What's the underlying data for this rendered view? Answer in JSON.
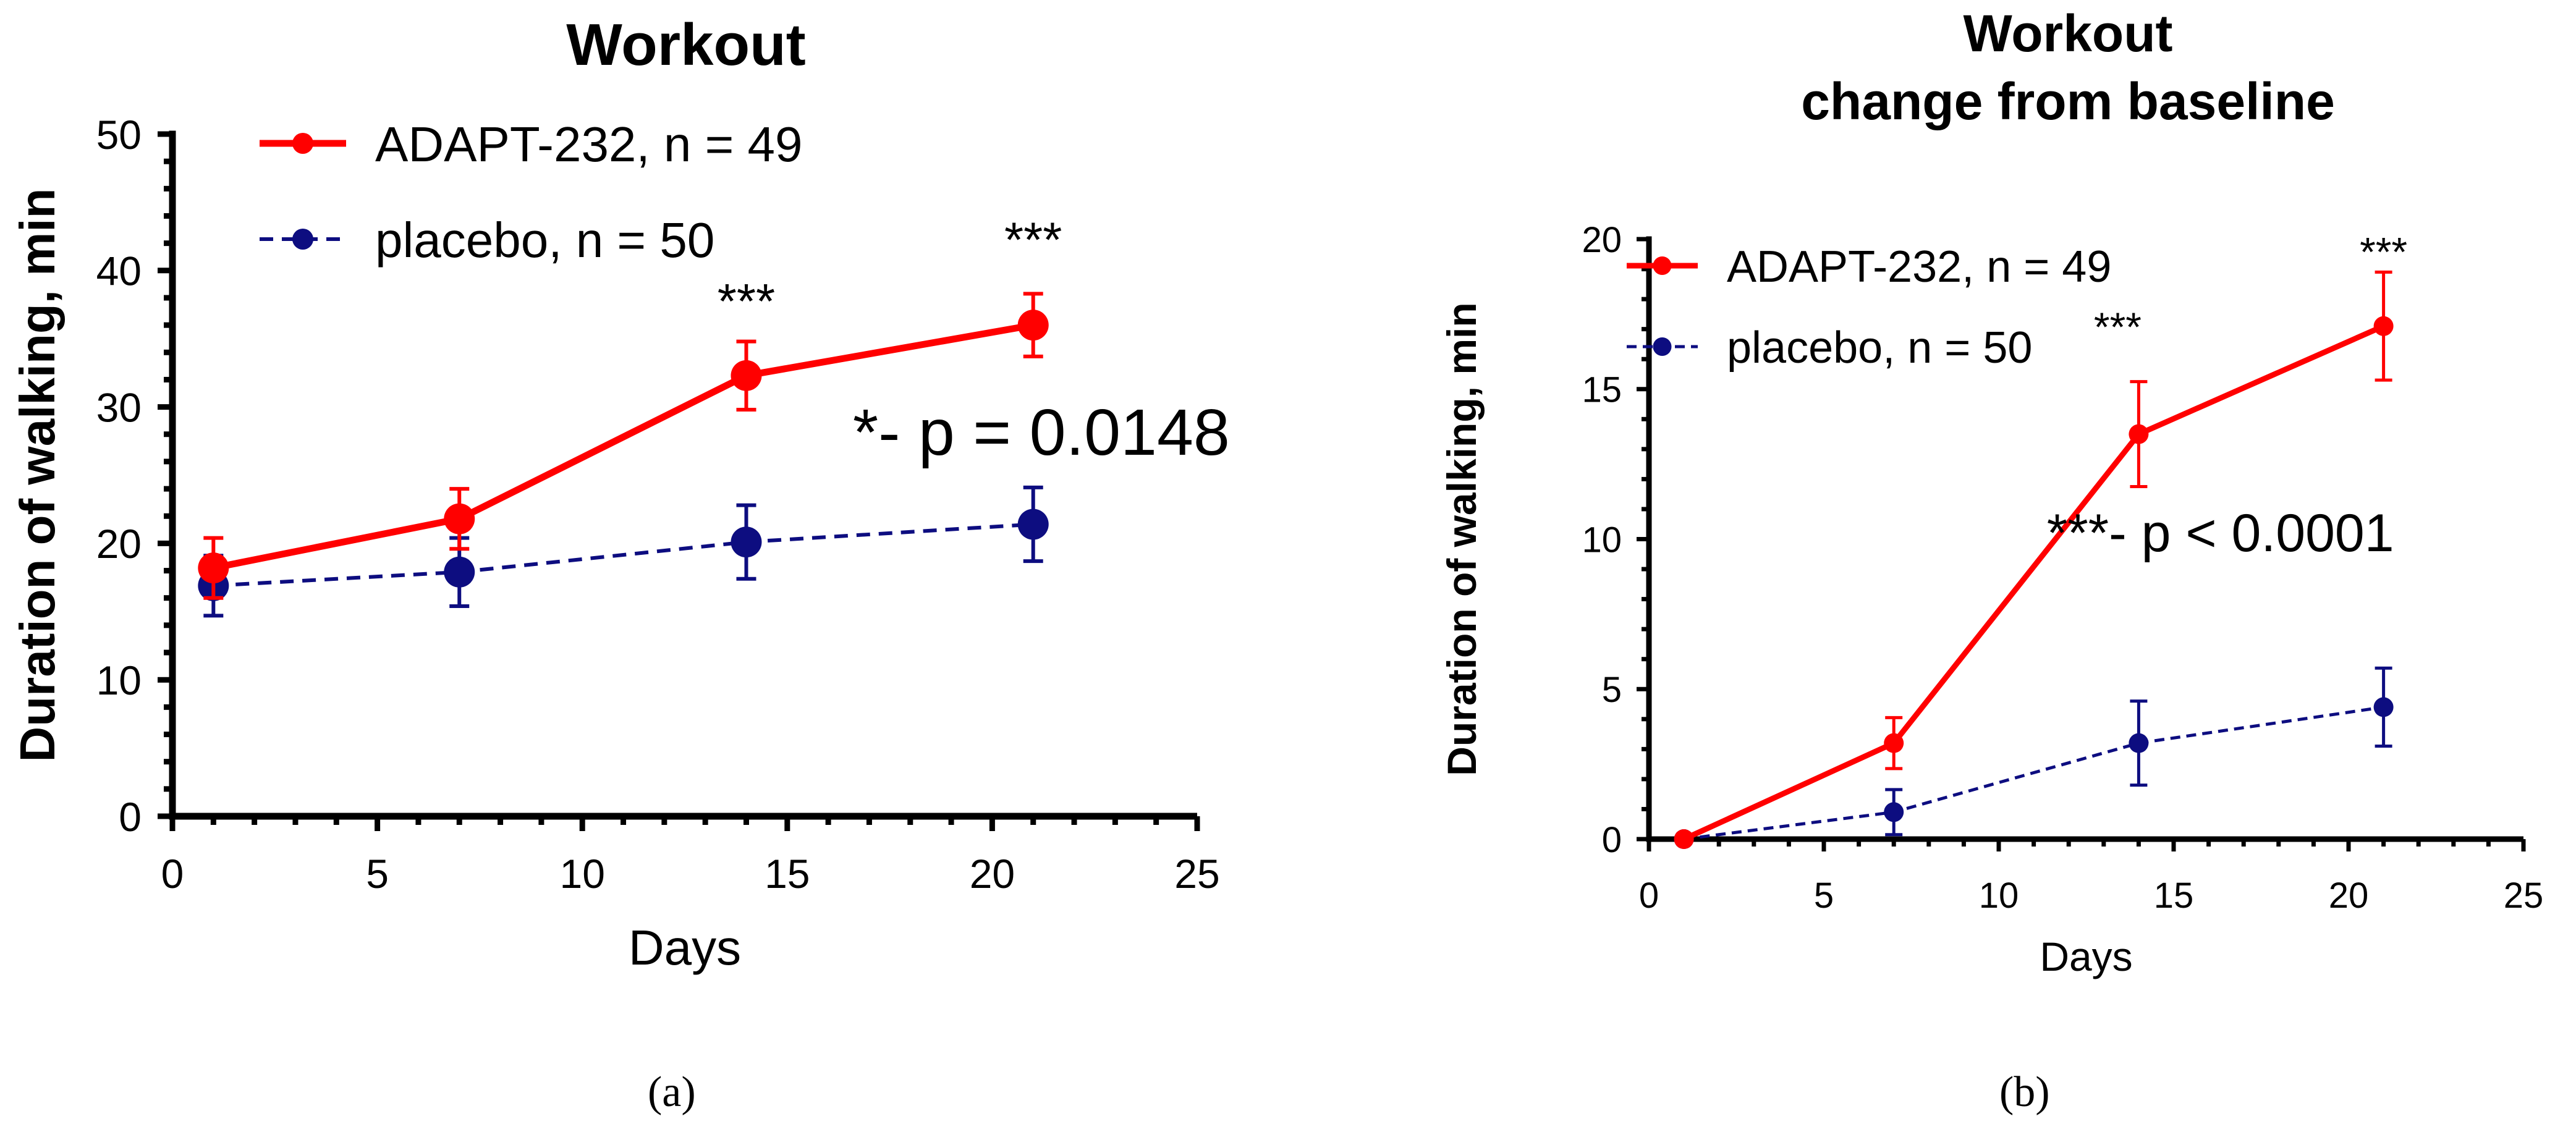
{
  "chart_data": [
    {
      "type": "line",
      "title": [
        "Workout"
      ],
      "xlabel": "Days",
      "ylabel": "Duration of walking, min",
      "xlim": [
        0,
        25
      ],
      "ylim": [
        0,
        50
      ],
      "xticks": [
        0,
        5,
        10,
        15,
        20,
        25
      ],
      "yticks": [
        0,
        10,
        20,
        30,
        40,
        50
      ],
      "xtick_labels": [
        "0",
        "5",
        "10",
        "15",
        "20",
        "25"
      ],
      "ytick_labels": [
        "0",
        "10",
        "20",
        "30",
        "40",
        "50"
      ],
      "legend": "top-left",
      "series": [
        {
          "name": "ADAPT-232, n = 49",
          "color": "#ff0000",
          "style": "solid",
          "x": [
            1,
            7,
            14,
            21
          ],
          "y": [
            18.2,
            21.8,
            32.3,
            36.0
          ],
          "err": [
            2.2,
            2.2,
            2.5,
            2.3
          ]
        },
        {
          "name": "placebo, n = 50",
          "color": "#0d0d80",
          "style": "dashed",
          "x": [
            1,
            7,
            14,
            21
          ],
          "y": [
            16.9,
            17.9,
            20.1,
            21.4
          ],
          "err": [
            2.2,
            2.5,
            2.7,
            2.7
          ]
        }
      ],
      "annotations": [
        {
          "text": "***",
          "x": 14,
          "y": 36.5
        },
        {
          "text": "***",
          "x": 21,
          "y": 41.0
        },
        {
          "text": "*- p = 0.0148",
          "x": 16.6,
          "y": 26.5
        }
      ],
      "caption": "(a)"
    },
    {
      "type": "line",
      "title": [
        "Workout",
        "change from baseline"
      ],
      "xlabel": "Days",
      "ylabel": "Duration of walking, min",
      "xlim": [
        0,
        25
      ],
      "ylim": [
        0,
        20
      ],
      "xticks": [
        0,
        5,
        10,
        15,
        20,
        25
      ],
      "yticks": [
        0,
        5,
        10,
        15,
        20
      ],
      "xtick_labels": [
        "0",
        "5",
        "10",
        "15",
        "20",
        "25"
      ],
      "ytick_labels": [
        "0",
        "5",
        "10",
        "15",
        "20"
      ],
      "legend": "top-left",
      "series": [
        {
          "name": "ADAPT-232, n = 49",
          "color": "#ff0000",
          "style": "solid",
          "x": [
            1,
            7,
            14,
            21
          ],
          "y": [
            0,
            3.2,
            13.5,
            17.1
          ],
          "err": [
            0,
            0.85,
            1.75,
            1.8
          ]
        },
        {
          "name": "placebo, n = 50",
          "color": "#0d0d80",
          "style": "dashed",
          "x": [
            1,
            7,
            14,
            21
          ],
          "y": [
            0,
            0.9,
            3.2,
            4.4
          ],
          "err": [
            0,
            0.75,
            1.4,
            1.3
          ]
        }
      ],
      "annotations": [
        {
          "text": "***",
          "x": 21,
          "y": 19.1
        },
        {
          "text": "***",
          "x": 13.4,
          "y": 16.6
        },
        {
          "text": "***- p < 0.0001",
          "x": 21.3,
          "y": 9.6
        }
      ],
      "caption": "(b)"
    }
  ]
}
